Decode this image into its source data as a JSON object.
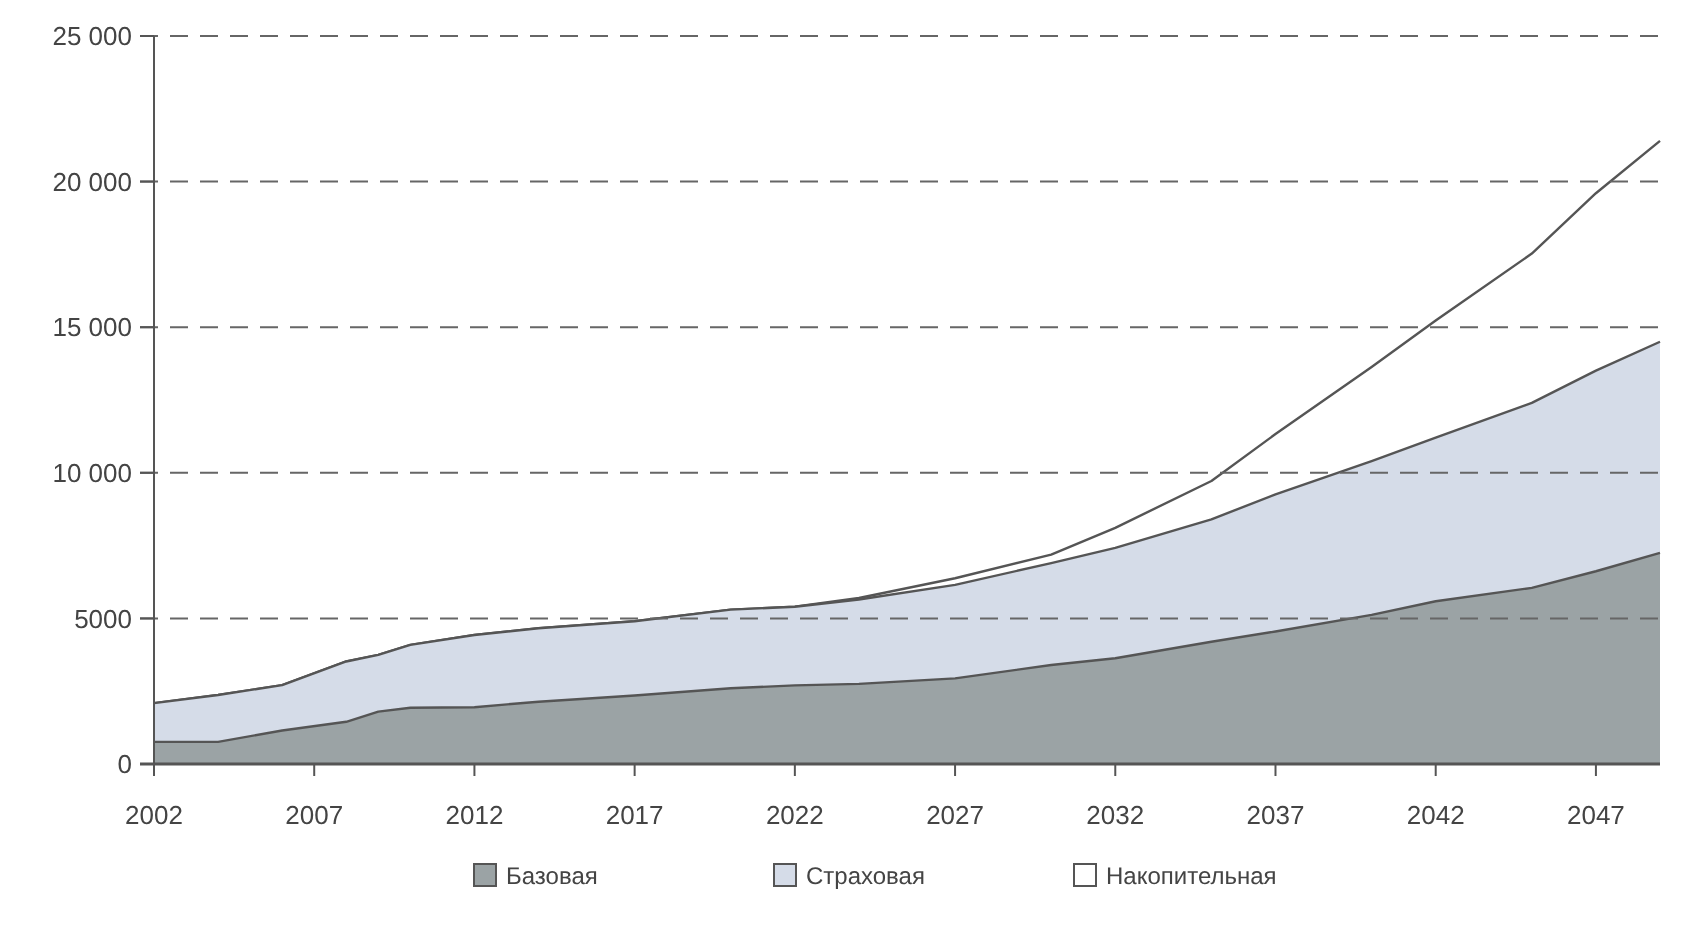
{
  "chart_data": {
    "type": "area",
    "stacked": true,
    "x": [
      2002,
      2004,
      2006,
      2008,
      2009,
      2010,
      2012,
      2014,
      2017,
      2020,
      2022,
      2024,
      2027,
      2030,
      2032,
      2035,
      2037,
      2040,
      2042,
      2045,
      2047,
      2049
    ],
    "series": [
      {
        "name": "Базовая",
        "color": "#9ba3a5",
        "values": [
          760,
          760,
          1150,
          1450,
          1800,
          1930,
          1950,
          2140,
          2350,
          2600,
          2700,
          2750,
          2940,
          3400,
          3630,
          4200,
          4550,
          5120,
          5590,
          6050,
          6620,
          7250
        ]
      },
      {
        "name": "Страховая",
        "color": "#d5dce8",
        "values": [
          1330,
          1610,
          1560,
          2070,
          1950,
          2160,
          2480,
          2520,
          2550,
          2700,
          2700,
          2900,
          3210,
          3500,
          3790,
          4200,
          4710,
          5280,
          5620,
          6350,
          6890,
          7250
        ]
      },
      {
        "name": "Накопительная",
        "color": "#ffffff",
        "values": [
          0,
          0,
          0,
          0,
          0,
          0,
          0,
          0,
          0,
          0,
          0,
          50,
          230,
          290,
          690,
          1320,
          2070,
          3230,
          4020,
          5130,
          6090,
          6900
        ]
      }
    ],
    "xlim": [
      2002,
      2049
    ],
    "xticks": [
      2002,
      2007,
      2012,
      2017,
      2022,
      2027,
      2032,
      2037,
      2042,
      2047
    ],
    "ylim": [
      0,
      25000
    ],
    "yticks": [
      0,
      5000,
      {
        "value": 10000,
        "label": "10 000"
      },
      {
        "value": 15000,
        "label": "15 000"
      },
      {
        "value": 20000,
        "label": "20 000"
      },
      {
        "value": 25000,
        "label": "25 000"
      }
    ],
    "grid": "y",
    "legend": "bottom"
  }
}
